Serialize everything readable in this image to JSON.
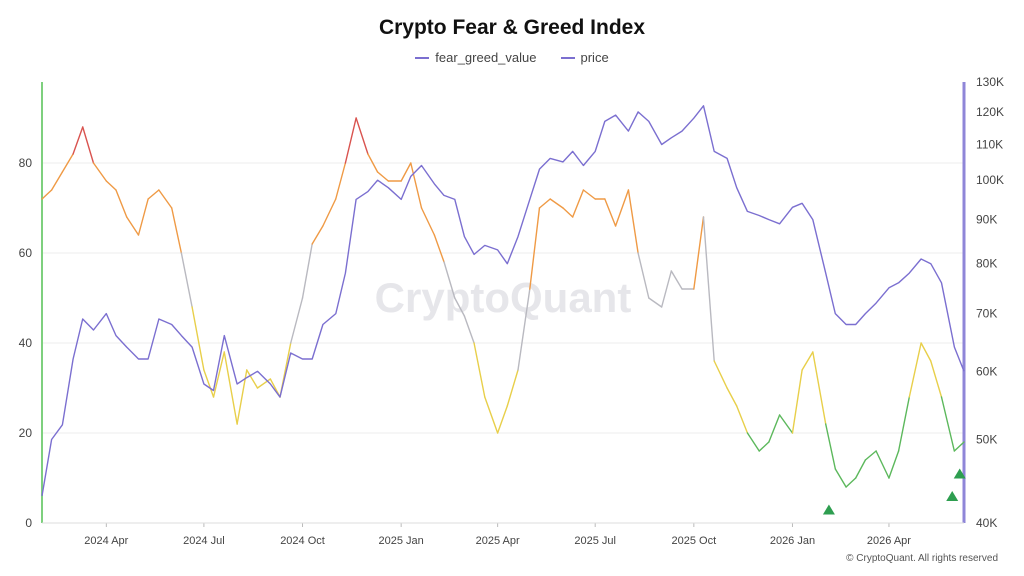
{
  "chart_data": {
    "type": "line",
    "title": "Crypto Fear & Greed Index",
    "legend": {
      "placement": "top-center"
    },
    "grid": true,
    "x_ticks": [
      "2024 Apr",
      "2024 Jul",
      "2024 Oct",
      "2025 Jan",
      "2025 Apr",
      "2025 Jul",
      "2025 Oct",
      "2026 Jan",
      "2026 Apr"
    ],
    "x_range": [
      "2024-02-01",
      "2026-06-10"
    ],
    "y_left": {
      "ticks": [
        "0",
        "20",
        "40",
        "60",
        "80"
      ],
      "ylim": [
        0,
        98
      ]
    },
    "y_right": {
      "ticks": [
        "40K",
        "50K",
        "60K",
        "70K",
        "80K",
        "90K",
        "100K",
        "110K",
        "120K",
        "130K"
      ],
      "ylim": [
        40000,
        130000
      ],
      "scale": "log"
    },
    "colors": {
      "price": "#7b6fd0",
      "extreme_greed": "#d9534f",
      "greed": "#ef9a45",
      "neutral": "#b9b9c0",
      "fear": "#e8cf4a",
      "extreme_fear": "#5cb85c",
      "left_axis": "#7ed07e",
      "right_axis": "#8f86d8",
      "marker": "#2e9e50"
    },
    "series": [
      {
        "name": "fear_greed_value",
        "axis": "left",
        "x": [
          "2024-02-01",
          "2024-02-10",
          "2024-02-20",
          "2024-03-01",
          "2024-03-10",
          "2024-03-20",
          "2024-04-01",
          "2024-04-10",
          "2024-04-20",
          "2024-05-01",
          "2024-05-10",
          "2024-05-20",
          "2024-06-01",
          "2024-06-10",
          "2024-06-20",
          "2024-07-01",
          "2024-07-10",
          "2024-07-20",
          "2024-08-01",
          "2024-08-10",
          "2024-08-20",
          "2024-09-01",
          "2024-09-10",
          "2024-09-20",
          "2024-10-01",
          "2024-10-10",
          "2024-10-20",
          "2024-11-01",
          "2024-11-10",
          "2024-11-20",
          "2024-12-01",
          "2024-12-10",
          "2024-12-20",
          "2025-01-01",
          "2025-01-10",
          "2025-01-20",
          "2025-02-01",
          "2025-02-10",
          "2025-02-20",
          "2025-03-01",
          "2025-03-10",
          "2025-03-20",
          "2025-04-01",
          "2025-04-10",
          "2025-04-20",
          "2025-05-01",
          "2025-05-10",
          "2025-05-20",
          "2025-06-01",
          "2025-06-10",
          "2025-06-20",
          "2025-07-01",
          "2025-07-10",
          "2025-07-20",
          "2025-08-01",
          "2025-08-10",
          "2025-08-20",
          "2025-09-01",
          "2025-09-10",
          "2025-09-20",
          "2025-10-01",
          "2025-10-10",
          "2025-10-20",
          "2025-11-01",
          "2025-11-10",
          "2025-11-20",
          "2025-12-01",
          "2025-12-10",
          "2025-12-20",
          "2026-01-01",
          "2026-01-10",
          "2026-01-20",
          "2026-02-01",
          "2026-02-10",
          "2026-02-20",
          "2026-03-01",
          "2026-03-10",
          "2026-03-20",
          "2026-04-01",
          "2026-04-10",
          "2026-04-20",
          "2026-05-01",
          "2026-05-10",
          "2026-05-20",
          "2026-06-01",
          "2026-06-10"
        ],
        "values": [
          72,
          74,
          78,
          82,
          88,
          80,
          76,
          74,
          68,
          64,
          72,
          74,
          70,
          60,
          48,
          34,
          28,
          38,
          22,
          34,
          30,
          32,
          28,
          40,
          50,
          62,
          66,
          72,
          80,
          90,
          82,
          78,
          76,
          76,
          80,
          70,
          64,
          58,
          50,
          46,
          40,
          28,
          20,
          26,
          34,
          52,
          70,
          72,
          70,
          68,
          74,
          72,
          72,
          66,
          74,
          60,
          50,
          48,
          56,
          52,
          52,
          68,
          36,
          30,
          26,
          20,
          16,
          18,
          24,
          20,
          34,
          38,
          22,
          12,
          8,
          10,
          14,
          16,
          10,
          16,
          28,
          40,
          36,
          28,
          16,
          18
        ]
      },
      {
        "name": "price",
        "axis": "right",
        "x": [
          "2024-02-01",
          "2024-02-10",
          "2024-02-20",
          "2024-03-01",
          "2024-03-10",
          "2024-03-20",
          "2024-04-01",
          "2024-04-10",
          "2024-04-20",
          "2024-05-01",
          "2024-05-10",
          "2024-05-20",
          "2024-06-01",
          "2024-06-10",
          "2024-06-20",
          "2024-07-01",
          "2024-07-10",
          "2024-07-20",
          "2024-08-01",
          "2024-08-10",
          "2024-08-20",
          "2024-09-01",
          "2024-09-10",
          "2024-09-20",
          "2024-10-01",
          "2024-10-10",
          "2024-10-20",
          "2024-11-01",
          "2024-11-10",
          "2024-11-20",
          "2024-12-01",
          "2024-12-10",
          "2024-12-20",
          "2025-01-01",
          "2025-01-10",
          "2025-01-20",
          "2025-02-01",
          "2025-02-10",
          "2025-02-20",
          "2025-03-01",
          "2025-03-10",
          "2025-03-20",
          "2025-04-01",
          "2025-04-10",
          "2025-04-20",
          "2025-05-01",
          "2025-05-10",
          "2025-05-20",
          "2025-06-01",
          "2025-06-10",
          "2025-06-20",
          "2025-07-01",
          "2025-07-10",
          "2025-07-20",
          "2025-08-01",
          "2025-08-10",
          "2025-08-20",
          "2025-09-01",
          "2025-09-10",
          "2025-09-20",
          "2025-10-01",
          "2025-10-10",
          "2025-10-20",
          "2025-11-01",
          "2025-11-10",
          "2025-11-20",
          "2025-12-01",
          "2025-12-10",
          "2025-12-20",
          "2026-01-01",
          "2026-01-10",
          "2026-01-20",
          "2026-02-01",
          "2026-02-10",
          "2026-02-20",
          "2026-03-01",
          "2026-03-10",
          "2026-03-20",
          "2026-04-01",
          "2026-04-10",
          "2026-04-20",
          "2026-05-01",
          "2026-05-10",
          "2026-05-20",
          "2026-06-01",
          "2026-06-10"
        ],
        "values": [
          43000,
          50000,
          52000,
          62000,
          69000,
          67000,
          70000,
          66000,
          64000,
          62000,
          62000,
          69000,
          68000,
          66000,
          64000,
          58000,
          57000,
          66000,
          58000,
          59000,
          60000,
          58000,
          56000,
          63000,
          62000,
          62000,
          68000,
          70000,
          78000,
          95000,
          97000,
          100000,
          98000,
          95000,
          101000,
          104000,
          99000,
          96000,
          95000,
          86000,
          82000,
          84000,
          83000,
          80000,
          86000,
          95000,
          103000,
          106000,
          105000,
          108000,
          104000,
          108000,
          117000,
          119000,
          114000,
          120000,
          117000,
          110000,
          112000,
          114000,
          118000,
          122000,
          108000,
          106000,
          98000,
          92000,
          91000,
          90000,
          89000,
          93000,
          94000,
          90000,
          78000,
          70000,
          68000,
          68000,
          70000,
          72000,
          75000,
          76000,
          78000,
          81000,
          80000,
          76000,
          64000,
          60000
        ]
      }
    ],
    "markers": [
      {
        "x": "2026-02-04",
        "y": 3
      },
      {
        "x": "2026-05-30",
        "y": 6
      },
      {
        "x": "2026-06-06",
        "y": 11
      }
    ],
    "watermark": "CryptoQuant",
    "footer": "© CryptoQuant. All rights reserved"
  }
}
